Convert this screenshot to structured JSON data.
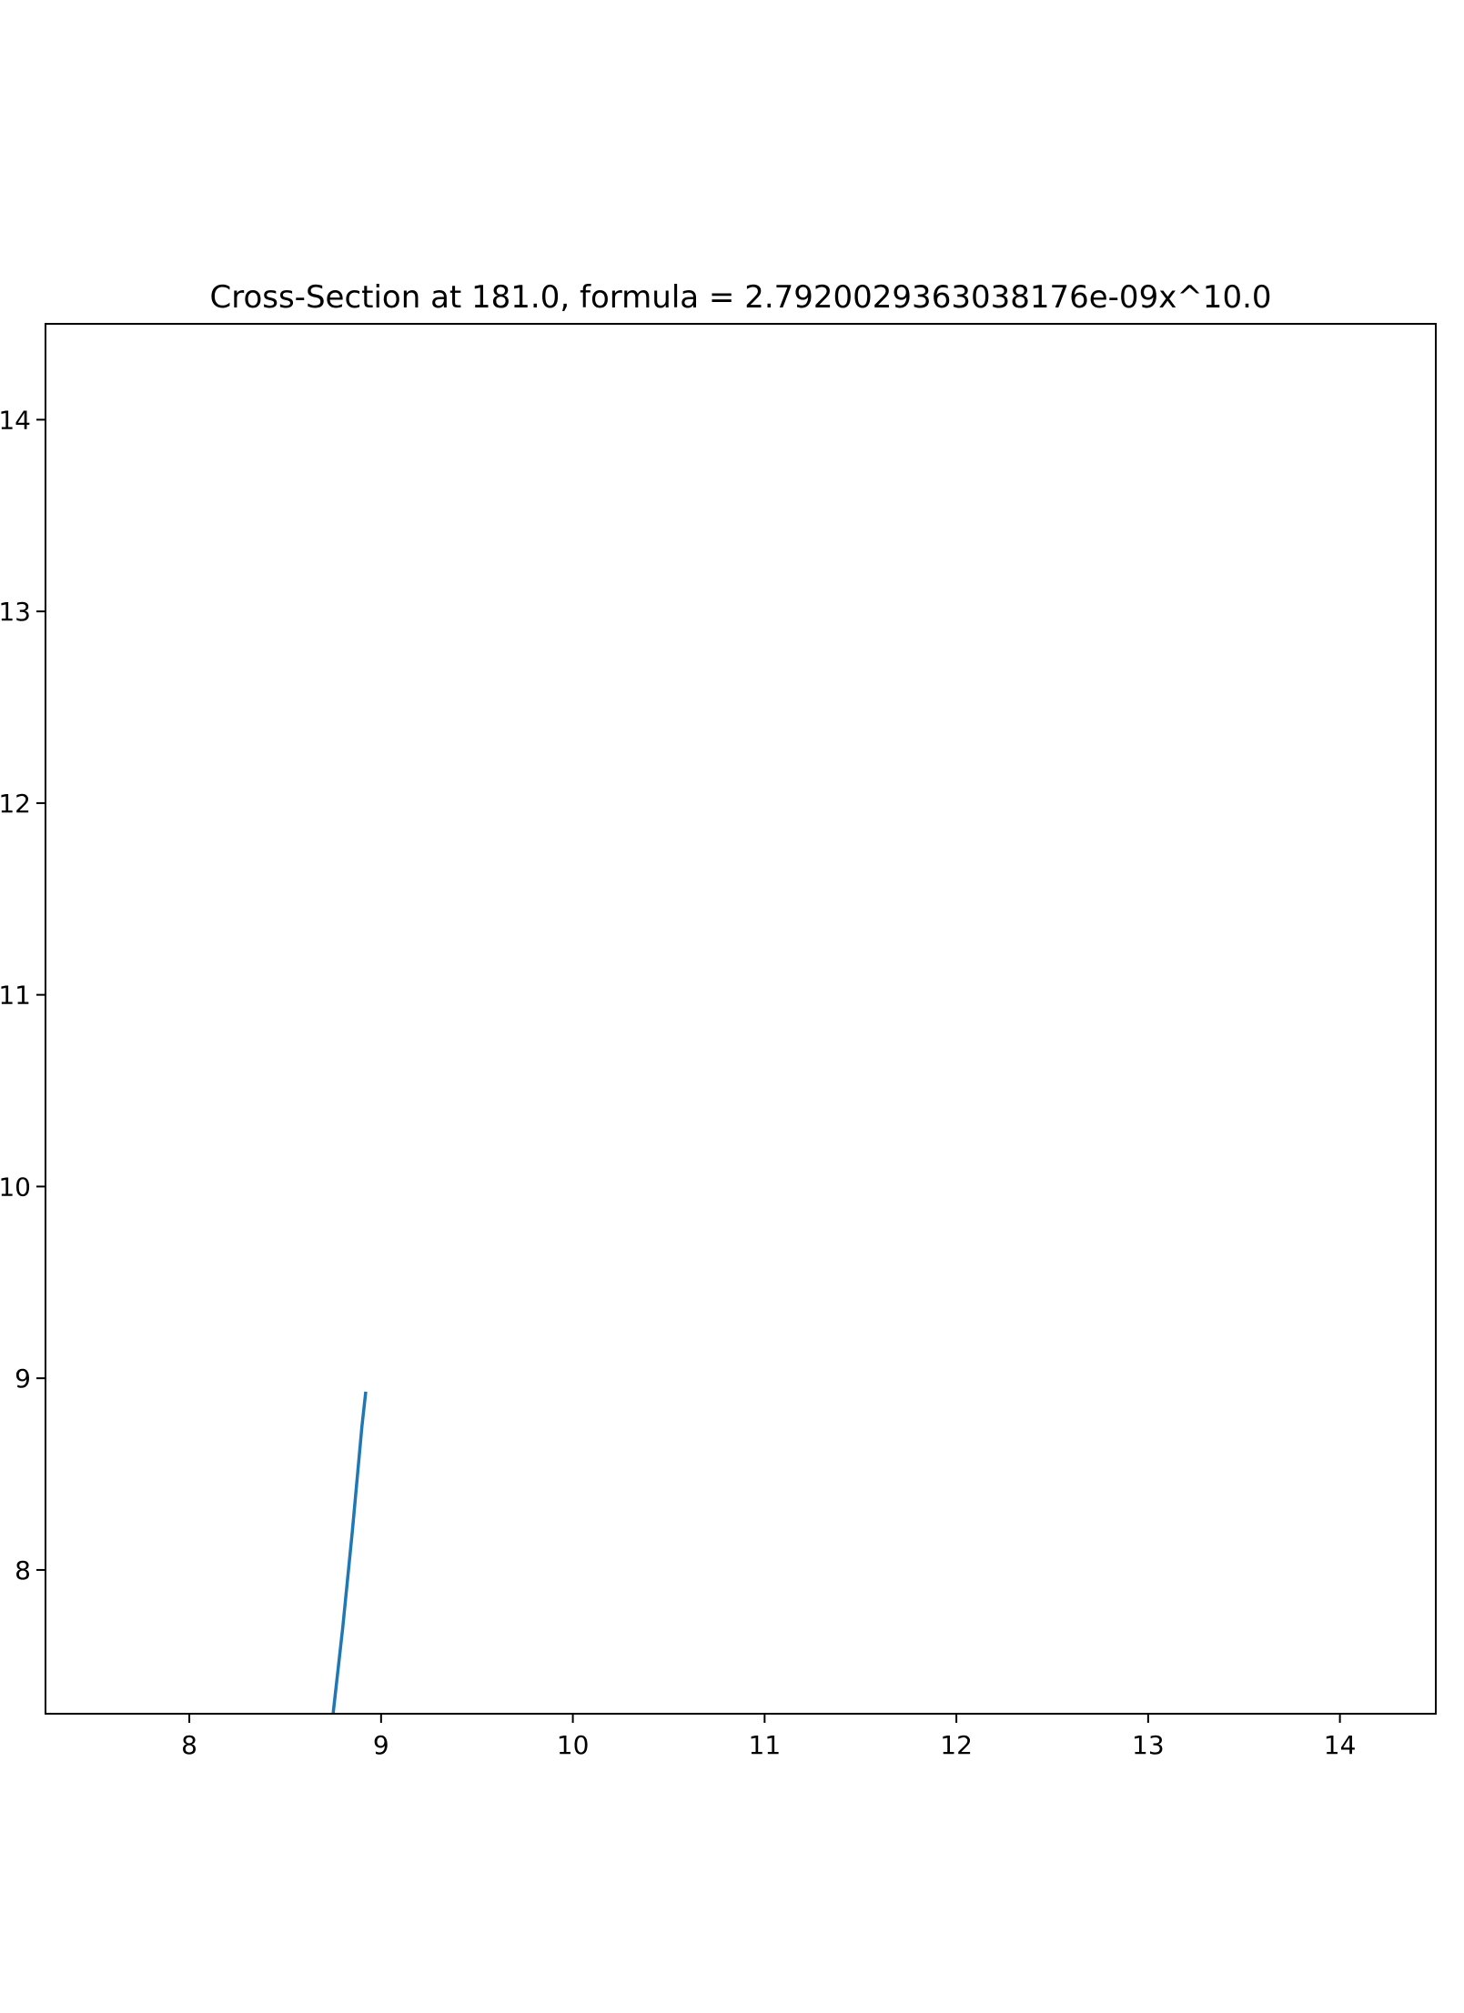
{
  "chart_data": {
    "type": "line",
    "title": "Cross-Section at 181.0, formula = 2.7920029363038176e-09x^10.0",
    "xlabel": "",
    "ylabel": "",
    "xlim": [
      7.25,
      14.5
    ],
    "ylim": [
      7.25,
      14.5
    ],
    "xticks": [
      "8",
      "9",
      "10",
      "11",
      "12",
      "13",
      "14"
    ],
    "yticks": [
      "8",
      "9",
      "10",
      "11",
      "12",
      "13",
      "14"
    ],
    "grid": false,
    "series": [
      {
        "color": "#1f77b4",
        "x": [
          8.75,
          8.8,
          8.85,
          8.9,
          8.92
        ],
        "y": [
          7.25,
          7.7,
          8.2,
          8.75,
          8.93
        ]
      }
    ]
  }
}
